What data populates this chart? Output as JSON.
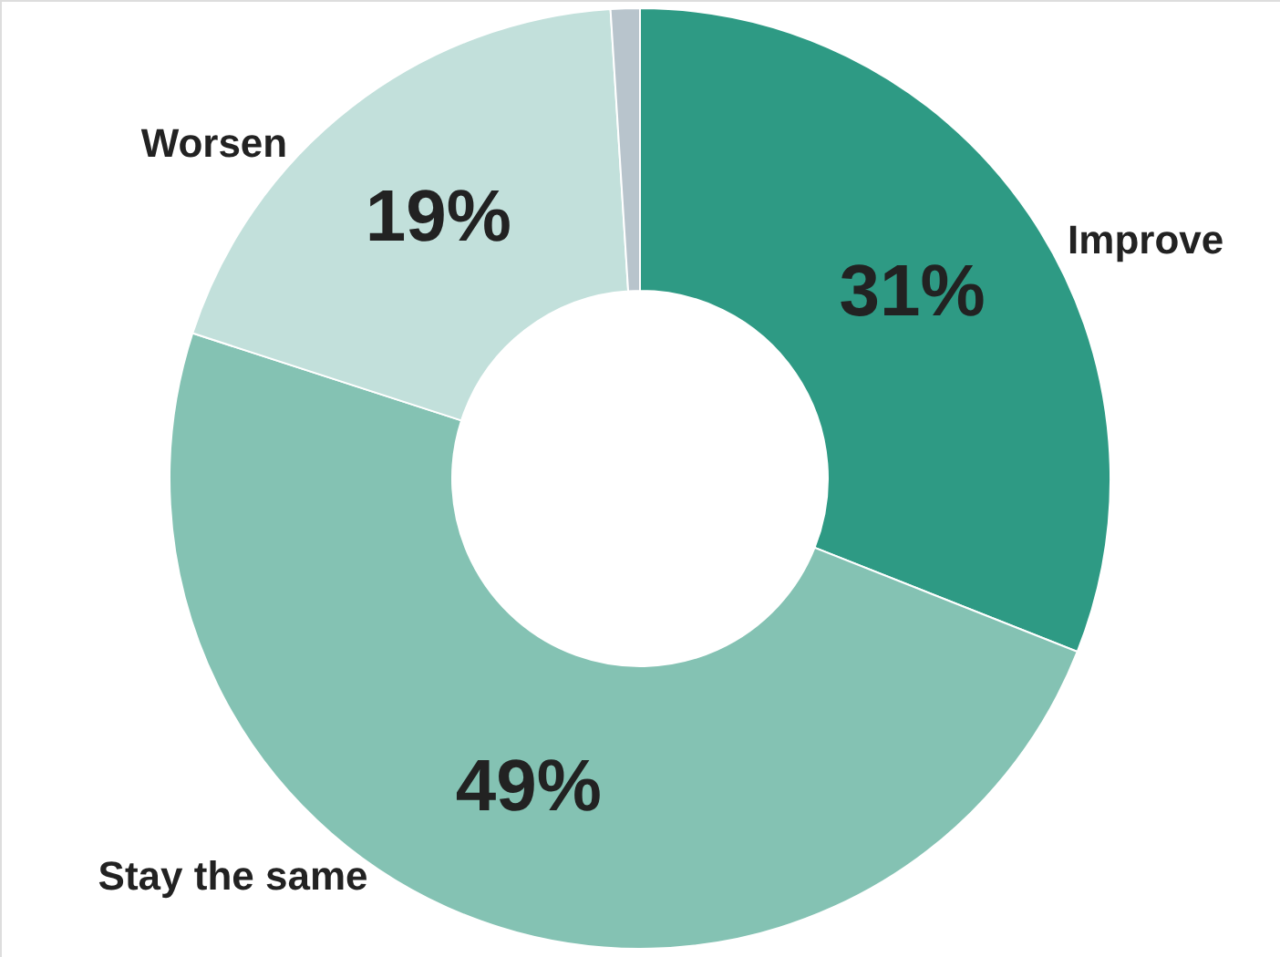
{
  "chart_data": {
    "type": "donut",
    "categories": [
      "Improve",
      "Stay the same",
      "Worsen",
      null
    ],
    "values": [
      31,
      49,
      19,
      1
    ],
    "colors": [
      "#2e9a84",
      "#84c2b3",
      "#c2e0db",
      "#b8c4cc"
    ],
    "value_labels": [
      "31%",
      "49%",
      "19%",
      null
    ]
  }
}
